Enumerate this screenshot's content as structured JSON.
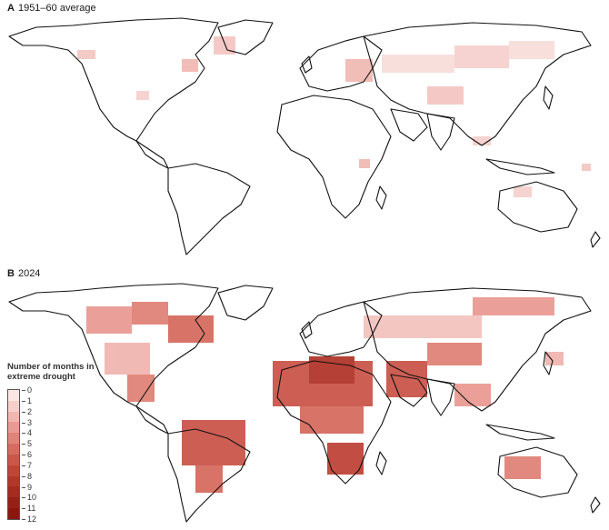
{
  "panel_a": {
    "letter": "A",
    "title": "1951–60 average"
  },
  "panel_b": {
    "letter": "B",
    "title": "2024"
  },
  "legend": {
    "title": "Number of months in extreme drought",
    "ticks": [
      "0",
      "1",
      "2",
      "3",
      "4",
      "5",
      "6",
      "7",
      "8",
      "9",
      "10",
      "11",
      "12"
    ],
    "colors": [
      "#ffffff",
      "#fbe6e4",
      "#f6cfcb",
      "#f0b6b0",
      "#e99b93",
      "#e08378",
      "#d66c60",
      "#cb564a",
      "#bf4539",
      "#b2362b",
      "#a52a20",
      "#972016",
      "#8a170e"
    ]
  }
}
